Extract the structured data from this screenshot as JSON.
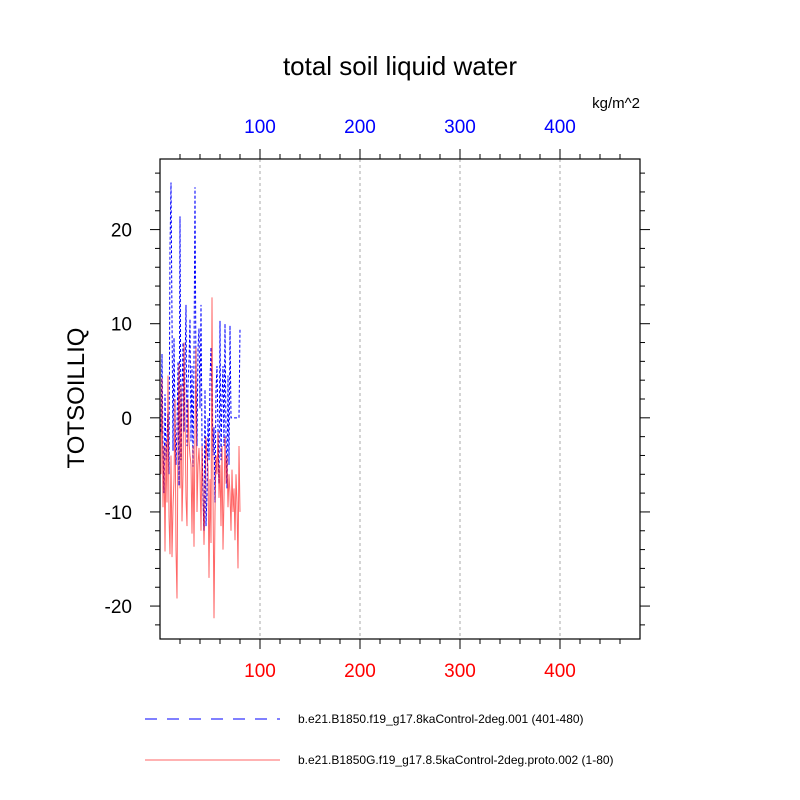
{
  "chart_data": {
    "type": "line",
    "title": "total soil liquid water",
    "units": "kg/m^2",
    "ylabel": "TOTSOILLIQ",
    "xlim": [
      0,
      480
    ],
    "ylim": [
      -23.5,
      27.5
    ],
    "bottom_axis": {
      "ticks": [
        100,
        200,
        300,
        400
      ],
      "tick_labels": [
        "100",
        "200",
        "300",
        "400"
      ],
      "color": "#ff0000"
    },
    "top_axis": {
      "ticks": [
        100,
        200,
        300,
        400
      ],
      "tick_labels": [
        "100",
        "200",
        "300",
        "400"
      ],
      "color": "#0000ff"
    },
    "y_ticks": [
      -20,
      -10,
      0,
      10,
      20
    ],
    "y_tick_labels": [
      "-20",
      "-10",
      "0",
      "10",
      "20"
    ],
    "grid": "vertical dashed at x ticks",
    "legend_position": "bottom",
    "series": [
      {
        "name": "b.e21.B1850.f19_g17.8kaControl-2deg.001 (401-480)",
        "color": "#0000ff",
        "style": "dashed",
        "x": [
          1,
          2,
          3,
          4,
          5,
          6,
          7,
          8,
          9,
          10,
          11,
          12,
          13,
          14,
          15,
          16,
          17,
          18,
          19,
          20,
          21,
          22,
          23,
          24,
          25,
          26,
          27,
          28,
          29,
          30,
          31,
          32,
          33,
          34,
          35,
          36,
          37,
          38,
          39,
          40,
          41,
          42,
          43,
          44,
          45,
          46,
          47,
          48,
          49,
          50,
          51,
          52,
          53,
          54,
          55,
          56,
          57,
          58,
          59,
          60,
          61,
          62,
          63,
          64,
          65,
          66,
          67,
          68,
          69,
          70,
          71,
          72,
          73,
          74,
          75,
          76,
          77,
          78,
          79,
          80
        ],
        "y": [
          -1.5,
          6.8,
          -3.2,
          -8.0,
          2.5,
          -4.5,
          -2.0,
          0.5,
          -6.0,
          18.0,
          25.0,
          10.5,
          -3.5,
          8.5,
          0.0,
          -5.0,
          -1.0,
          6.0,
          -7.2,
          21.4,
          -4.5,
          2.0,
          8.0,
          -1.5,
          5.0,
          12.0,
          -3.0,
          3.5,
          6.0,
          10.5,
          -2.5,
          5.5,
          -5.2,
          6.5,
          24.5,
          4.0,
          -3.0,
          7.5,
          9.5,
          1.0,
          12.0,
          -2.5,
          -8.5,
          -12.0,
          3.0,
          -11.5,
          -8.0,
          0.0,
          -4.5,
          4.0,
          7.5,
          2.5,
          -4.0,
          -1.0,
          -9.0,
          3.0,
          5.5,
          -1.5,
          -7.0,
          10.3,
          -4.5,
          2.0,
          5.5,
          -3.0,
          10.0,
          -1.5,
          -7.5,
          4.5,
          -5.0,
          9.8,
          0.0,
          0.0,
          0.0,
          0.0,
          0.0,
          0.0,
          0.0,
          0.0,
          0.0,
          9.5
        ]
      },
      {
        "name": "b.e21.B1850G.f19_g17.8.5kaControl-2deg.proto.002 (1-80)",
        "color": "#ff0000",
        "style": "solid",
        "x": [
          1,
          2,
          3,
          4,
          5,
          6,
          7,
          8,
          9,
          10,
          11,
          12,
          13,
          14,
          15,
          16,
          17,
          18,
          19,
          20,
          21,
          22,
          23,
          24,
          25,
          26,
          27,
          28,
          29,
          30,
          31,
          32,
          33,
          34,
          35,
          36,
          37,
          38,
          39,
          40,
          41,
          42,
          43,
          44,
          45,
          46,
          47,
          48,
          49,
          50,
          51,
          52,
          53,
          54,
          55,
          56,
          57,
          58,
          59,
          60,
          61,
          62,
          63,
          64,
          65,
          66,
          67,
          68,
          69,
          70,
          71,
          72,
          73,
          74,
          75,
          76,
          77,
          78,
          79,
          80
        ],
        "y": [
          -6.0,
          4.2,
          -9.5,
          -3.0,
          -14.2,
          -2.5,
          -9.0,
          4.5,
          -10.5,
          -14.5,
          -4.0,
          -14.8,
          -9.5,
          -6.5,
          2.0,
          -14.0,
          -19.2,
          -2.0,
          5.8,
          -7.5,
          3.5,
          -11.0,
          -6.0,
          8.0,
          0.5,
          -8.5,
          -11.5,
          2.0,
          -2.5,
          -4.0,
          -5.0,
          -12.3,
          -3.0,
          -13.7,
          -1.5,
          7.5,
          -10.0,
          -5.0,
          -3.2,
          -6.0,
          -12.0,
          -3.0,
          -8.0,
          -13.5,
          -8.5,
          -2.0,
          -4.0,
          -5.2,
          -17.0,
          -6.5,
          -13.3,
          12.8,
          -8.0,
          -21.3,
          -10.0,
          -4.0,
          -6.0,
          -1.5,
          -8.5,
          -5.0,
          -11.5,
          -3.0,
          -14.0,
          -8.5,
          -2.0,
          -7.0,
          -4.0,
          -9.5,
          -6.0,
          -8.0,
          -12.0,
          -5.5,
          -10.0,
          -7.5,
          -13.0,
          -6.0,
          -9.0,
          -16.0,
          -3.0,
          -10.0
        ]
      }
    ]
  }
}
